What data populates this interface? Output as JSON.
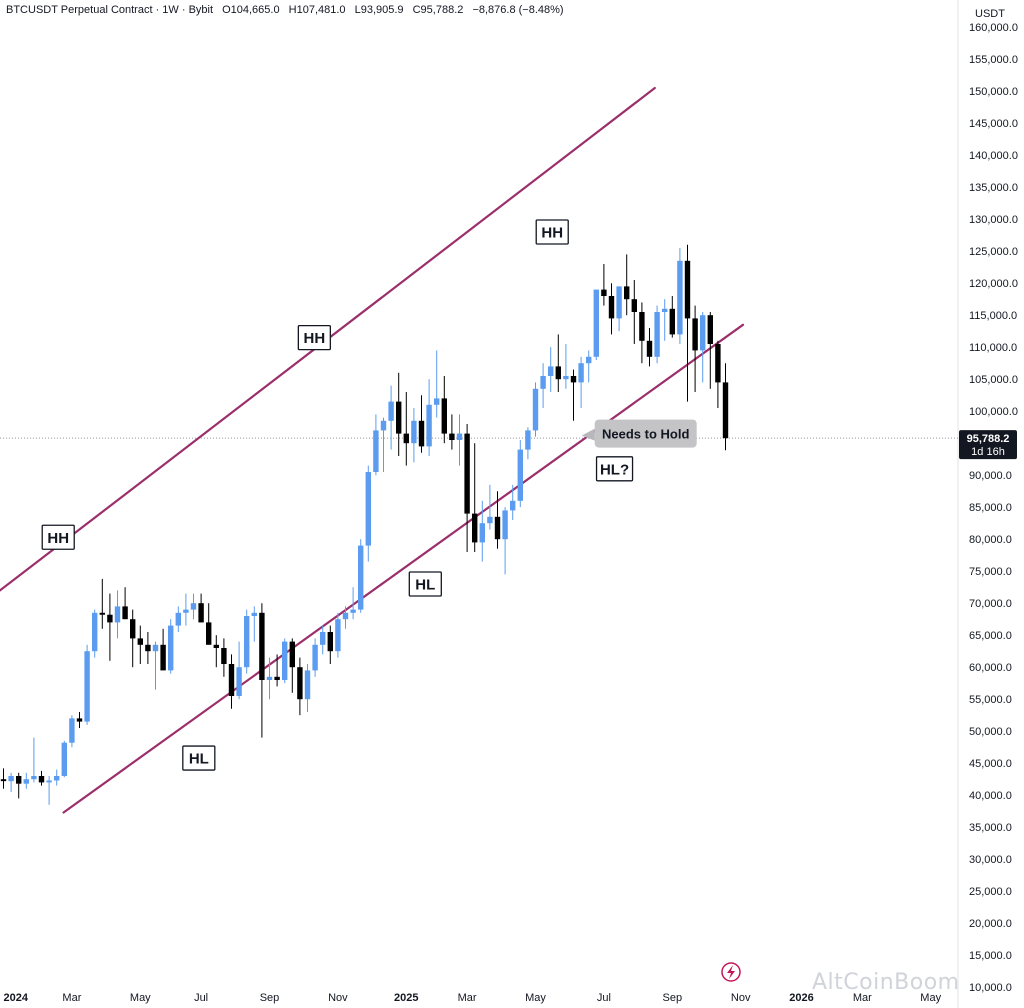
{
  "header": {
    "symbol": "BTCUSDT Perpetual Contract · 1W · Bybit",
    "open": "O104,665.0",
    "high": "H107,481.0",
    "low": "L93,905.9",
    "close": "C95,788.2",
    "change": "−8,876.8 (−8.48%)"
  },
  "currency": "USDT",
  "watermark": "AltCoinBoom",
  "colors": {
    "up": "#5b9cf0",
    "down": "#000000",
    "channel": "#9b2f6b",
    "current_price_tag": "#131722"
  },
  "chart_data": {
    "type": "candlestick",
    "interval": "1W",
    "ylim": [
      8000,
      163000
    ],
    "y_ticks": [
      10000,
      15000,
      20000,
      25000,
      30000,
      35000,
      40000,
      45000,
      50000,
      55000,
      60000,
      65000,
      70000,
      75000,
      80000,
      85000,
      90000,
      95000,
      100000,
      105000,
      110000,
      115000,
      120000,
      125000,
      130000,
      135000,
      140000,
      145000,
      150000,
      155000,
      160000
    ],
    "y_tick_labels": [
      "10,000.0",
      "15,000.0",
      "20,000.0",
      "25,000.0",
      "30,000.0",
      "35,000.0",
      "40,000.0",
      "45,000.0",
      "50,000.0",
      "55,000.0",
      "60,000.0",
      "65,000.0",
      "70,000.0",
      "75,000.0",
      "80,000.0",
      "85,000.0",
      "90,000.0",
      "95,000.0",
      "100,000.0",
      "105,000.0",
      "110,000.0",
      "115,000.0",
      "120,000.0",
      "125,000.0",
      "130,000.0",
      "135,000.0",
      "140,000.0",
      "145,000.0",
      "150,000.0",
      "155,000.0",
      "160,000.0"
    ],
    "x_tick_labels": [
      {
        "label": "2024",
        "week": 0,
        "bold": true
      },
      {
        "label": "Mar",
        "week": 9
      },
      {
        "label": "May",
        "week": 18
      },
      {
        "label": "Jul",
        "week": 26
      },
      {
        "label": "Sep",
        "week": 35
      },
      {
        "label": "Nov",
        "week": 44
      },
      {
        "label": "2025",
        "week": 53,
        "bold": true
      },
      {
        "label": "Mar",
        "week": 61
      },
      {
        "label": "May",
        "week": 70
      },
      {
        "label": "Jul",
        "week": 79
      },
      {
        "label": "Sep",
        "week": 88
      },
      {
        "label": "Nov",
        "week": 97
      },
      {
        "label": "2026",
        "week": 105,
        "bold": true
      },
      {
        "label": "Mar",
        "week": 113
      },
      {
        "label": "May",
        "week": 122
      }
    ],
    "current_price": {
      "value": 95788.2,
      "label": "95,788.2",
      "countdown": "1d 16h"
    },
    "candles": [
      [
        42500,
        44200,
        41000,
        42200
      ],
      [
        42200,
        43500,
        40500,
        43000
      ],
      [
        43000,
        43500,
        39500,
        41800
      ],
      [
        41800,
        43500,
        41000,
        42500
      ],
      [
        42500,
        49000,
        42000,
        43000
      ],
      [
        43000,
        43800,
        41500,
        42000
      ],
      [
        42000,
        43000,
        38500,
        42300
      ],
      [
        42300,
        44000,
        41500,
        43000
      ],
      [
        43000,
        48500,
        42800,
        48200
      ],
      [
        48200,
        52500,
        47500,
        52000
      ],
      [
        52000,
        53000,
        50500,
        51500
      ],
      [
        51500,
        63500,
        51000,
        62500
      ],
      [
        62500,
        69000,
        61500,
        68500
      ],
      [
        68500,
        73800,
        66000,
        68200
      ],
      [
        68200,
        71500,
        61000,
        67000
      ],
      [
        67000,
        72000,
        64500,
        69500
      ],
      [
        69500,
        72500,
        67500,
        67500
      ],
      [
        67500,
        69000,
        60000,
        64500
      ],
      [
        64500,
        66500,
        60500,
        63500
      ],
      [
        63500,
        65500,
        60500,
        62500
      ],
      [
        62500,
        64000,
        56500,
        63500
      ],
      [
        63500,
        66000,
        60000,
        59500
      ],
      [
        59500,
        67500,
        59000,
        66500
      ],
      [
        66500,
        69500,
        65500,
        68500
      ],
      [
        68500,
        71500,
        66500,
        69000
      ],
      [
        69000,
        71500,
        67500,
        70000
      ],
      [
        70000,
        71500,
        67000,
        67000
      ],
      [
        67000,
        70000,
        65000,
        63500
      ],
      [
        63500,
        65000,
        60000,
        63000
      ],
      [
        63000,
        64500,
        58500,
        60500
      ],
      [
        60500,
        62000,
        53500,
        55500
      ],
      [
        55500,
        64000,
        55000,
        60000
      ],
      [
        60000,
        69000,
        59000,
        68000
      ],
      [
        68000,
        69500,
        64000,
        68500
      ],
      [
        68500,
        70000,
        49000,
        58000
      ],
      [
        58000,
        61500,
        55000,
        58500
      ],
      [
        58500,
        62000,
        57000,
        58000
      ],
      [
        58000,
        64500,
        57500,
        64000
      ],
      [
        64000,
        64500,
        56000,
        60000
      ],
      [
        60000,
        61500,
        52500,
        55000
      ],
      [
        55000,
        60500,
        53000,
        59500
      ],
      [
        59500,
        64500,
        58500,
        63500
      ],
      [
        63500,
        66500,
        62000,
        65500
      ],
      [
        65500,
        66500,
        60500,
        62500
      ],
      [
        62500,
        68500,
        61500,
        67500
      ],
      [
        67500,
        69500,
        66000,
        68500
      ],
      [
        68500,
        72500,
        67500,
        69000
      ],
      [
        69000,
        80000,
        68500,
        79000
      ],
      [
        79000,
        91500,
        76500,
        90500
      ],
      [
        90500,
        99500,
        90000,
        97000
      ],
      [
        97000,
        99000,
        90500,
        98500
      ],
      [
        98500,
        104000,
        94000,
        101500
      ],
      [
        101500,
        106000,
        93000,
        96500
      ],
      [
        96500,
        103000,
        91500,
        95000
      ],
      [
        95000,
        100500,
        92000,
        98500
      ],
      [
        98500,
        102500,
        93500,
        94500
      ],
      [
        94500,
        105000,
        93000,
        101000
      ],
      [
        101000,
        109500,
        99000,
        102000
      ],
      [
        102000,
        105500,
        95000,
        96500
      ],
      [
        96500,
        99500,
        94000,
        95500
      ],
      [
        95500,
        99500,
        91500,
        96500
      ],
      [
        96500,
        98000,
        78000,
        84000
      ],
      [
        84000,
        95000,
        78000,
        79500
      ],
      [
        79500,
        86000,
        76500,
        82500
      ],
      [
        82500,
        88500,
        81500,
        83500
      ],
      [
        83500,
        87500,
        78500,
        80000
      ],
      [
        80000,
        85000,
        74500,
        84500
      ],
      [
        84500,
        88500,
        83000,
        86000
      ],
      [
        86000,
        95500,
        85000,
        94000
      ],
      [
        94000,
        97500,
        92500,
        97000
      ],
      [
        97000,
        104500,
        96000,
        103500
      ],
      [
        103500,
        107500,
        100500,
        105500
      ],
      [
        105500,
        110000,
        103000,
        107000
      ],
      [
        107000,
        112000,
        103000,
        105000
      ],
      [
        105000,
        110500,
        103500,
        105500
      ],
      [
        105500,
        106500,
        98500,
        104500
      ],
      [
        104500,
        108500,
        100500,
        107500
      ],
      [
        107500,
        109500,
        104500,
        108500
      ],
      [
        108500,
        119000,
        108000,
        119000
      ],
      [
        119000,
        123000,
        116500,
        118000
      ],
      [
        118000,
        120000,
        112000,
        114500
      ],
      [
        114500,
        119500,
        112500,
        119500
      ],
      [
        119500,
        124500,
        115000,
        117500
      ],
      [
        117500,
        120500,
        110500,
        115500
      ],
      [
        115500,
        117000,
        107500,
        111000
      ],
      [
        111000,
        113000,
        107000,
        108500
      ],
      [
        108500,
        116500,
        107500,
        115500
      ],
      [
        115500,
        117500,
        111000,
        116000
      ],
      [
        116000,
        118000,
        111500,
        112000
      ],
      [
        112000,
        125500,
        110500,
        123500
      ],
      [
        123500,
        126000,
        101500,
        114500
      ],
      [
        114500,
        116500,
        103000,
        109500
      ],
      [
        109500,
        115500,
        104500,
        115000
      ],
      [
        115000,
        115500,
        103500,
        110500
      ],
      [
        110500,
        111000,
        100500,
        104500
      ],
      [
        104500,
        107500,
        93905,
        95788
      ]
    ],
    "channel": {
      "upper": [
        [
          -4.3,
          68500
        ],
        [
          85.7,
          150500
        ]
      ],
      "lower": [
        [
          7.9,
          37300
        ],
        [
          97.3,
          113500
        ]
      ]
    },
    "annotations": [
      {
        "label": "HH",
        "week": 7.2,
        "price": 80300,
        "kind": "box"
      },
      {
        "label": "HL",
        "week": 25.7,
        "price": 45800,
        "kind": "box"
      },
      {
        "label": "HH",
        "week": 40.9,
        "price": 111500,
        "kind": "box"
      },
      {
        "label": "HL",
        "week": 55.5,
        "price": 73000,
        "kind": "box"
      },
      {
        "label": "HH",
        "week": 72.2,
        "price": 128000,
        "kind": "box"
      },
      {
        "label": "HL?",
        "week": 80.4,
        "price": 91000,
        "kind": "box"
      },
      {
        "label": "Needs to Hold",
        "week": 84.5,
        "price": 96500,
        "kind": "callout"
      }
    ]
  }
}
